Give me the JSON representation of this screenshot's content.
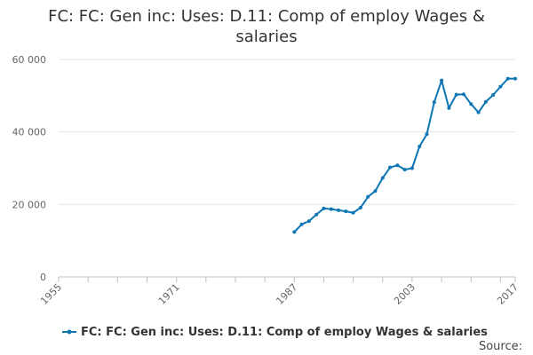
{
  "chart_data": {
    "type": "line",
    "title_lines": [
      "FC: FC: Gen inc: Uses: D.11: Comp of employ Wages &",
      "salaries"
    ],
    "xlabel": "",
    "ylabel": "",
    "xlim": [
      1955,
      2017
    ],
    "ylim": [
      0,
      60000
    ],
    "x_ticks": [
      "1955",
      "1971",
      "1987",
      "2003",
      "2017"
    ],
    "y_ticks": [
      "0",
      "20 000",
      "40 000",
      "60 000"
    ],
    "grid": true,
    "legend_position": "bottom-center",
    "color": "#0f76b6",
    "series": [
      {
        "name": "FC: FC: Gen inc: Uses: D.11: Comp of employ Wages & salaries",
        "x": [
          1987,
          1988,
          1989,
          1990,
          1991,
          1992,
          1993,
          1994,
          1995,
          1996,
          1997,
          1998,
          1999,
          2000,
          2001,
          2002,
          2003,
          2004,
          2005,
          2006,
          2007,
          2008,
          2009,
          2010,
          2011,
          2012,
          2013,
          2014,
          2015,
          2016,
          2017
        ],
        "values": [
          12400,
          14500,
          15400,
          17200,
          18900,
          18700,
          18400,
          18100,
          17700,
          19100,
          22100,
          23700,
          27300,
          30200,
          30800,
          29600,
          30000,
          36000,
          39400,
          48200,
          54200,
          46600,
          50300,
          50400,
          47700,
          45400,
          48300,
          50200,
          52500,
          54700,
          54700
        ]
      }
    ]
  },
  "credit": "Source:"
}
